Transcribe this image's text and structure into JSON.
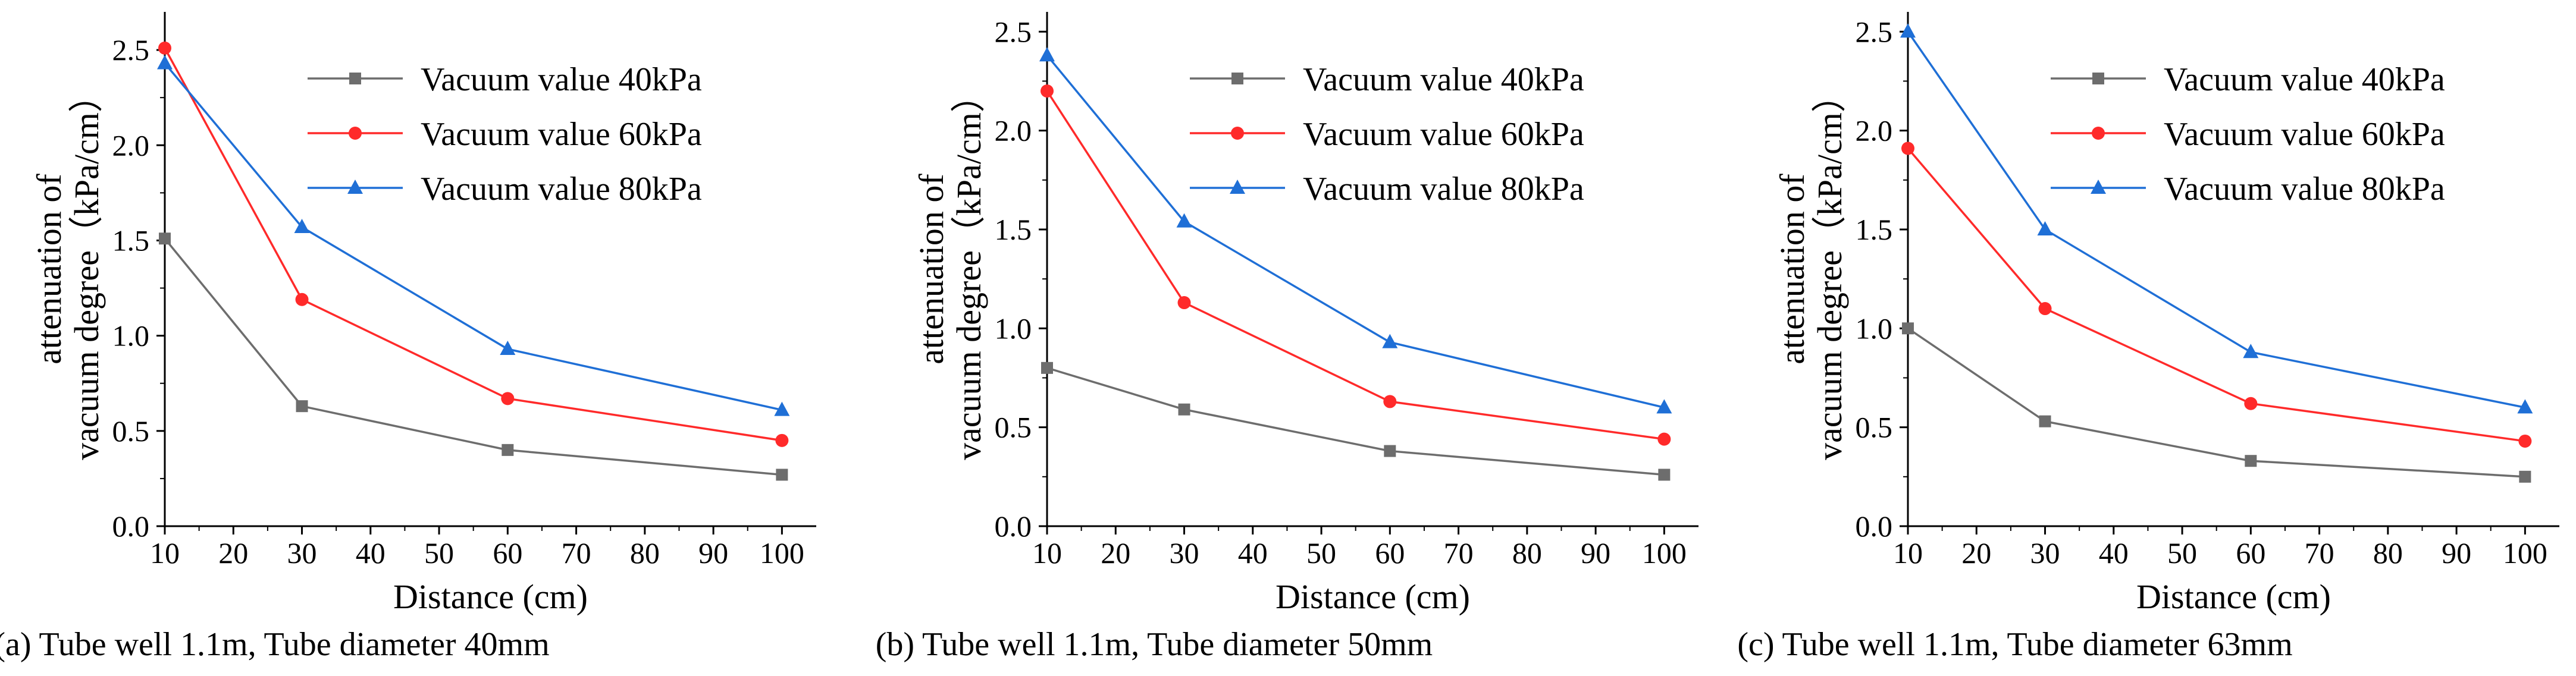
{
  "colors": {
    "s40": "#6d6d6d",
    "s60": "#ff2a2a",
    "s80": "#1f6fd6",
    "axis": "#000000"
  },
  "chart_data": [
    {
      "type": "line",
      "caption": "(a)  Tube well 1.1m, Tube diameter 40mm",
      "xlabel": "Distance (cm)",
      "ylabel_line1": "attenuation of",
      "ylabel_line2": "vacuum degree（kPa/cm）",
      "x": [
        10,
        30,
        60,
        100
      ],
      "xlim": [
        10,
        105
      ],
      "ylim": [
        0,
        2.7
      ],
      "xticks": [
        10,
        20,
        30,
        40,
        50,
        60,
        70,
        80,
        90,
        100
      ],
      "yticks": [
        0.0,
        0.5,
        1.0,
        1.5,
        2.0,
        2.5
      ],
      "ytick_labels": [
        "0.0",
        "0.5",
        "1.0",
        "1.5",
        "2.0",
        "2.5"
      ],
      "legend_position": "top-right",
      "series": [
        {
          "name": "Vacuum value 40kPa",
          "marker": "square",
          "color": "#6d6d6d",
          "values": [
            1.51,
            0.63,
            0.4,
            0.27
          ]
        },
        {
          "name": "Vacuum value 60kPa",
          "marker": "circle",
          "color": "#ff2a2a",
          "values": [
            2.51,
            1.19,
            0.67,
            0.45
          ]
        },
        {
          "name": "Vacuum value 80kPa",
          "marker": "triangle",
          "color": "#1f6fd6",
          "values": [
            2.43,
            1.57,
            0.93,
            0.61
          ]
        }
      ]
    },
    {
      "type": "line",
      "caption": "(b)  Tube well 1.1m, Tube diameter 50mm",
      "xlabel": "Distance (cm)",
      "ylabel_line1": "attenuation of",
      "ylabel_line2": "vacuum degree（kPa/cm）",
      "x": [
        10,
        30,
        60,
        100
      ],
      "xlim": [
        10,
        105
      ],
      "ylim": [
        0,
        2.6
      ],
      "xticks": [
        10,
        20,
        30,
        40,
        50,
        60,
        70,
        80,
        90,
        100
      ],
      "yticks": [
        0.0,
        0.5,
        1.0,
        1.5,
        2.0,
        2.5
      ],
      "ytick_labels": [
        "0.0",
        "0.5",
        "1.0",
        "1.5",
        "2.0",
        "2.5"
      ],
      "legend_position": "top-right",
      "series": [
        {
          "name": "Vacuum value 40kPa",
          "marker": "square",
          "color": "#6d6d6d",
          "values": [
            0.8,
            0.59,
            0.38,
            0.26
          ]
        },
        {
          "name": "Vacuum value 60kPa",
          "marker": "circle",
          "color": "#ff2a2a",
          "values": [
            2.2,
            1.13,
            0.63,
            0.44
          ]
        },
        {
          "name": "Vacuum value 80kPa",
          "marker": "triangle",
          "color": "#1f6fd6",
          "values": [
            2.38,
            1.54,
            0.93,
            0.6
          ]
        }
      ]
    },
    {
      "type": "line",
      "caption": "(c)  Tube well 1.1m, Tube diameter 63mm",
      "xlabel": "Distance (cm)",
      "ylabel_line1": "attenuation of",
      "ylabel_line2": "vacuum degree（kPa/cm）",
      "x": [
        10,
        30,
        60,
        100
      ],
      "xlim": [
        10,
        105
      ],
      "ylim": [
        0,
        2.6
      ],
      "xticks": [
        10,
        20,
        30,
        40,
        50,
        60,
        70,
        80,
        90,
        100
      ],
      "yticks": [
        0.0,
        0.5,
        1.0,
        1.5,
        2.0,
        2.5
      ],
      "ytick_labels": [
        "0.0",
        "0.5",
        "1.0",
        "1.5",
        "2.0",
        "2.5"
      ],
      "legend_position": "top-right",
      "series": [
        {
          "name": "Vacuum value 40kPa",
          "marker": "square",
          "color": "#6d6d6d",
          "values": [
            1.0,
            0.53,
            0.33,
            0.25
          ]
        },
        {
          "name": "Vacuum value 60kPa",
          "marker": "circle",
          "color": "#ff2a2a",
          "values": [
            1.91,
            1.1,
            0.62,
            0.43
          ]
        },
        {
          "name": "Vacuum value 80kPa",
          "marker": "triangle",
          "color": "#1f6fd6",
          "values": [
            2.5,
            1.5,
            0.88,
            0.6
          ]
        }
      ]
    }
  ]
}
